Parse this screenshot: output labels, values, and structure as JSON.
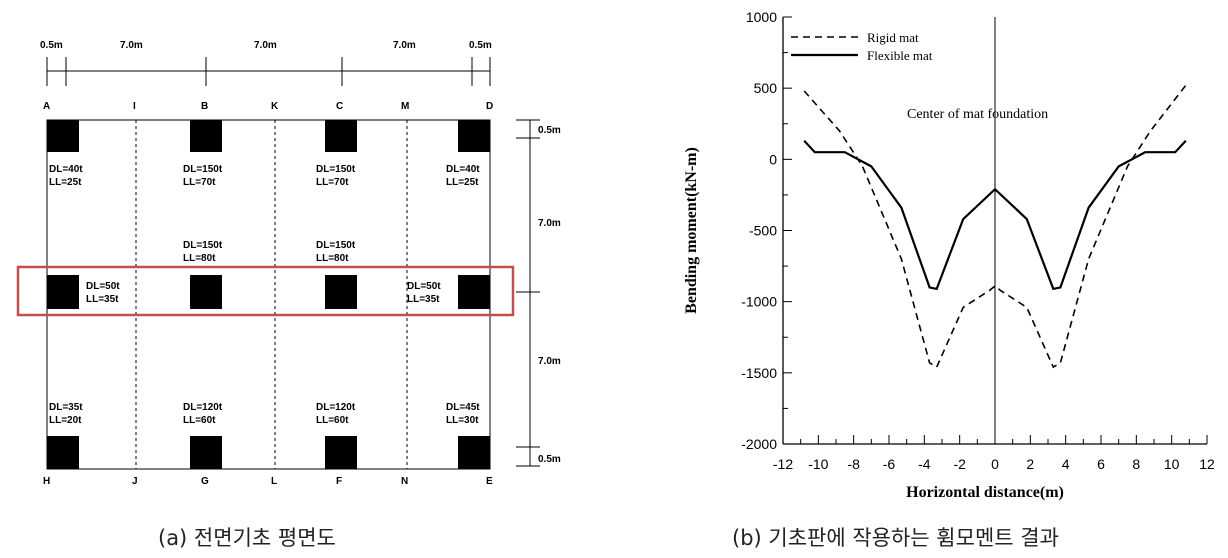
{
  "plan": {
    "dimensions_top": [
      "0.5m",
      "7.0m",
      "7.0m",
      "7.0m",
      "0.5m"
    ],
    "dimensions_right": [
      "0.5m",
      "7.0m",
      "7.0m",
      "0.5m"
    ],
    "grid_top": [
      "A",
      "I",
      "B",
      "K",
      "C",
      "M",
      "D"
    ],
    "grid_bottom": [
      "H",
      "J",
      "G",
      "L",
      "F",
      "N",
      "E"
    ],
    "loads": [
      [
        "DL=40t",
        "LL=25t"
      ],
      [
        "DL=150t",
        "LL=70t"
      ],
      [
        "DL=150t",
        "LL=70t"
      ],
      [
        "DL=40t",
        "LL=25t"
      ],
      [
        "DL=150t",
        "LL=80t"
      ],
      [
        "DL=150t",
        "LL=80t"
      ],
      [
        "DL=50t",
        "LL=35t"
      ],
      [
        "DL=50t",
        "LL=35t"
      ],
      [
        "DL=35t",
        "LL=20t"
      ],
      [
        "DL=120t",
        "LL=60t"
      ],
      [
        "DL=120t",
        "LL=60t"
      ],
      [
        "DL=45t",
        "LL=30t"
      ]
    ],
    "highlight_color": "#c0504d"
  },
  "caption_a": "(a) 전면기초 평면도",
  "caption_b": "(b) 기초판에 작용하는 휨모멘트 결과",
  "chart_data": {
    "type": "line",
    "xlabel": "Horizontal distance(m)",
    "ylabel": "Bending moment(kN-m)",
    "xlim": [
      -12,
      12
    ],
    "ylim": [
      -2000,
      1000
    ],
    "xticks": [
      -12,
      -10,
      -8,
      -6,
      -4,
      -2,
      0,
      2,
      4,
      6,
      8,
      10,
      12
    ],
    "yticks": [
      1000,
      500,
      0,
      -500,
      -1000,
      -1500,
      -2000
    ],
    "legend_position": "top-left",
    "annotation": "Center of mat foundation",
    "series": [
      {
        "name": "Rigid mat",
        "style": "dashed",
        "x": [
          -10.8,
          -8.8,
          -7.5,
          -5.3,
          -3.7,
          -3.3,
          -1.8,
          -0.3,
          0,
          0.3,
          1.8,
          3.3,
          3.7,
          5.3,
          7.5,
          8.8,
          10.8
        ],
        "y": [
          480,
          200,
          -50,
          -700,
          -1430,
          -1460,
          -1040,
          -920,
          -890,
          -920,
          -1040,
          -1460,
          -1430,
          -700,
          -50,
          200,
          520
        ]
      },
      {
        "name": "Flexible mat",
        "style": "solid",
        "x": [
          -10.8,
          -10.2,
          -8.5,
          -7,
          -5.3,
          -3.7,
          -3.3,
          -1.8,
          0,
          1.8,
          3.3,
          3.7,
          5.3,
          7,
          8.5,
          10.2,
          10.8
        ],
        "y": [
          130,
          50,
          50,
          -50,
          -340,
          -900,
          -910,
          -420,
          -210,
          -420,
          -910,
          -900,
          -340,
          -50,
          50,
          50,
          130
        ]
      }
    ]
  }
}
